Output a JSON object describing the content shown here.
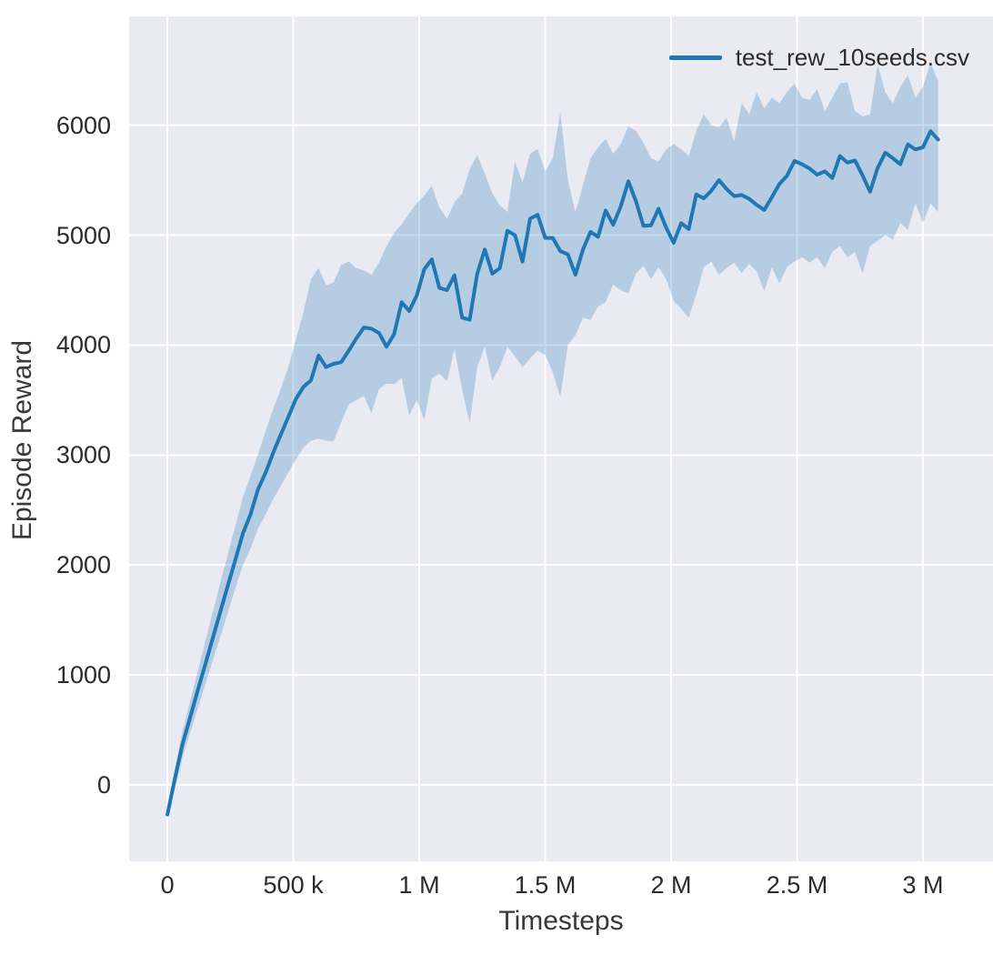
{
  "colors": {
    "figure_bg": "#ffffff",
    "axes_bg": "#eaeaf2",
    "grid": "#ffffff",
    "text": "#2b2b2b",
    "line": "#1f77b4"
  },
  "chart_data": {
    "type": "line",
    "title": "",
    "xlabel": "Timesteps",
    "ylabel": "Episode Reward",
    "xlim": [
      -152000,
      3278000
    ],
    "ylim": [
      -695,
      6990
    ],
    "grid": true,
    "legend_position": "upper right",
    "x_ticks": [
      {
        "value": 0,
        "label": "0"
      },
      {
        "value": 500000,
        "label": "500 k"
      },
      {
        "value": 1000000,
        "label": "1 M"
      },
      {
        "value": 1500000,
        "label": "1.5 M"
      },
      {
        "value": 2000000,
        "label": "2 M"
      },
      {
        "value": 2500000,
        "label": "2.5 M"
      },
      {
        "value": 3000000,
        "label": "3 M"
      }
    ],
    "y_ticks": [
      {
        "value": 0,
        "label": "0"
      },
      {
        "value": 1000,
        "label": "1000"
      },
      {
        "value": 2000,
        "label": "2000"
      },
      {
        "value": 3000,
        "label": "3000"
      },
      {
        "value": 4000,
        "label": "4000"
      },
      {
        "value": 5000,
        "label": "5000"
      },
      {
        "value": 6000,
        "label": "6000"
      }
    ],
    "series": [
      {
        "name": "test_rew_10seeds.csv",
        "color": "#1f77b4",
        "band_color": "rgba(31,119,180,0.26)",
        "x": [
          0,
          30000,
          60000,
          90000,
          120000,
          150000,
          180000,
          210000,
          240000,
          270000,
          300000,
          330000,
          360000,
          390000,
          420000,
          450000,
          480000,
          510000,
          540000,
          570000,
          600000,
          630000,
          660000,
          690000,
          720000,
          750000,
          780000,
          810000,
          840000,
          870000,
          900000,
          930000,
          960000,
          990000,
          1020000,
          1050000,
          1080000,
          1110000,
          1140000,
          1170000,
          1200000,
          1230000,
          1260000,
          1290000,
          1320000,
          1350000,
          1380000,
          1410000,
          1440000,
          1470000,
          1500000,
          1530000,
          1560000,
          1590000,
          1620000,
          1650000,
          1680000,
          1710000,
          1740000,
          1770000,
          1800000,
          1830000,
          1860000,
          1890000,
          1920000,
          1950000,
          1980000,
          2010000,
          2040000,
          2070000,
          2100000,
          2130000,
          2160000,
          2190000,
          2220000,
          2250000,
          2280000,
          2310000,
          2340000,
          2370000,
          2400000,
          2430000,
          2460000,
          2490000,
          2520000,
          2550000,
          2580000,
          2610000,
          2640000,
          2670000,
          2700000,
          2730000,
          2760000,
          2790000,
          2820000,
          2850000,
          2880000,
          2910000,
          2940000,
          2970000,
          3000000,
          3030000,
          3060000
        ],
        "mean": [
          -270,
          60,
          370,
          610,
          855,
          1090,
          1335,
          1575,
          1815,
          2050,
          2290,
          2460,
          2690,
          2840,
          3020,
          3185,
          3345,
          3510,
          3620,
          3680,
          3905,
          3800,
          3830,
          3845,
          3950,
          4060,
          4160,
          4150,
          4110,
          3985,
          4100,
          4390,
          4310,
          4450,
          4690,
          4780,
          4520,
          4500,
          4635,
          4250,
          4230,
          4650,
          4870,
          4650,
          4700,
          5040,
          5000,
          4760,
          5150,
          5185,
          4975,
          4975,
          4855,
          4825,
          4640,
          4870,
          5030,
          4985,
          5225,
          5095,
          5260,
          5490,
          5310,
          5085,
          5090,
          5240,
          5070,
          4930,
          5110,
          5055,
          5370,
          5335,
          5405,
          5500,
          5420,
          5355,
          5365,
          5330,
          5275,
          5230,
          5345,
          5465,
          5540,
          5675,
          5645,
          5605,
          5550,
          5580,
          5520,
          5720,
          5660,
          5680,
          5545,
          5395,
          5610,
          5750,
          5700,
          5645,
          5825,
          5780,
          5800,
          5945,
          5870
        ],
        "band_lower": [
          -270,
          -30,
          250,
          470,
          690,
          910,
          1130,
          1350,
          1570,
          1790,
          2000,
          2150,
          2330,
          2460,
          2600,
          2720,
          2840,
          2960,
          3070,
          3130,
          3150,
          3130,
          3125,
          3300,
          3460,
          3500,
          3540,
          3380,
          3600,
          3650,
          3645,
          3700,
          3360,
          3500,
          3320,
          3700,
          3740,
          3670,
          3965,
          3600,
          3290,
          3800,
          3985,
          3680,
          3800,
          3985,
          3900,
          3800,
          3880,
          3950,
          3910,
          3750,
          3530,
          4000,
          4090,
          4250,
          4230,
          4350,
          4390,
          4550,
          4500,
          4470,
          4650,
          4720,
          4600,
          4710,
          4600,
          4400,
          4330,
          4250,
          4460,
          4710,
          4760,
          4640,
          4700,
          4750,
          4655,
          4740,
          4670,
          4490,
          4710,
          4560,
          4710,
          4760,
          4800,
          4750,
          4800,
          4700,
          4850,
          4900,
          4800,
          4850,
          4650,
          4900,
          4950,
          5000,
          4960,
          5110,
          5050,
          5290,
          5110,
          5290,
          5210
        ],
        "band_upper": [
          -270,
          150,
          490,
          760,
          1030,
          1300,
          1570,
          1840,
          2100,
          2360,
          2620,
          2810,
          3010,
          3220,
          3420,
          3600,
          3800,
          4050,
          4300,
          4600,
          4700,
          4545,
          4570,
          4730,
          4760,
          4700,
          4680,
          4640,
          4750,
          4900,
          5020,
          5100,
          5200,
          5290,
          5360,
          5450,
          5250,
          5150,
          5300,
          5380,
          5600,
          5730,
          5560,
          5380,
          5270,
          5210,
          5670,
          5480,
          5740,
          5785,
          5580,
          5700,
          6120,
          5500,
          5210,
          5455,
          5700,
          5800,
          5875,
          5740,
          5830,
          5990,
          5950,
          5840,
          5700,
          5670,
          5780,
          5830,
          5780,
          5720,
          5950,
          6100,
          6000,
          5980,
          6070,
          5850,
          6200,
          6100,
          6300,
          6150,
          6250,
          6200,
          6300,
          6375,
          6250,
          6230,
          6330,
          6130,
          6250,
          6380,
          6390,
          6130,
          6080,
          6100,
          6550,
          6300,
          6200,
          6350,
          6455,
          6250,
          6350,
          6570,
          6400
        ]
      }
    ]
  }
}
